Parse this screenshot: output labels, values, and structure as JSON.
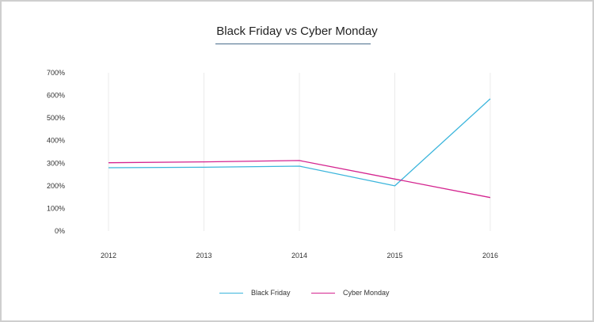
{
  "chart_data": {
    "type": "line",
    "title": "Black Friday vs Cyber Monday",
    "xlabel": "",
    "ylabel": "",
    "categories": [
      "2012",
      "2013",
      "2014",
      "2015",
      "2016"
    ],
    "y_ticks": [
      "0%",
      "100%",
      "200%",
      "300%",
      "400%",
      "500%",
      "600%",
      "700%"
    ],
    "ylim": [
      0,
      700
    ],
    "grid": "vertical",
    "legend_position": "bottom-center",
    "series": [
      {
        "name": "Black Friday",
        "color": "#3bb5dc",
        "values": [
          280,
          282,
          287,
          200,
          585
        ]
      },
      {
        "name": "Cyber Monday",
        "color": "#d4248f",
        "values": [
          302,
          306,
          312,
          230,
          148
        ]
      }
    ]
  }
}
